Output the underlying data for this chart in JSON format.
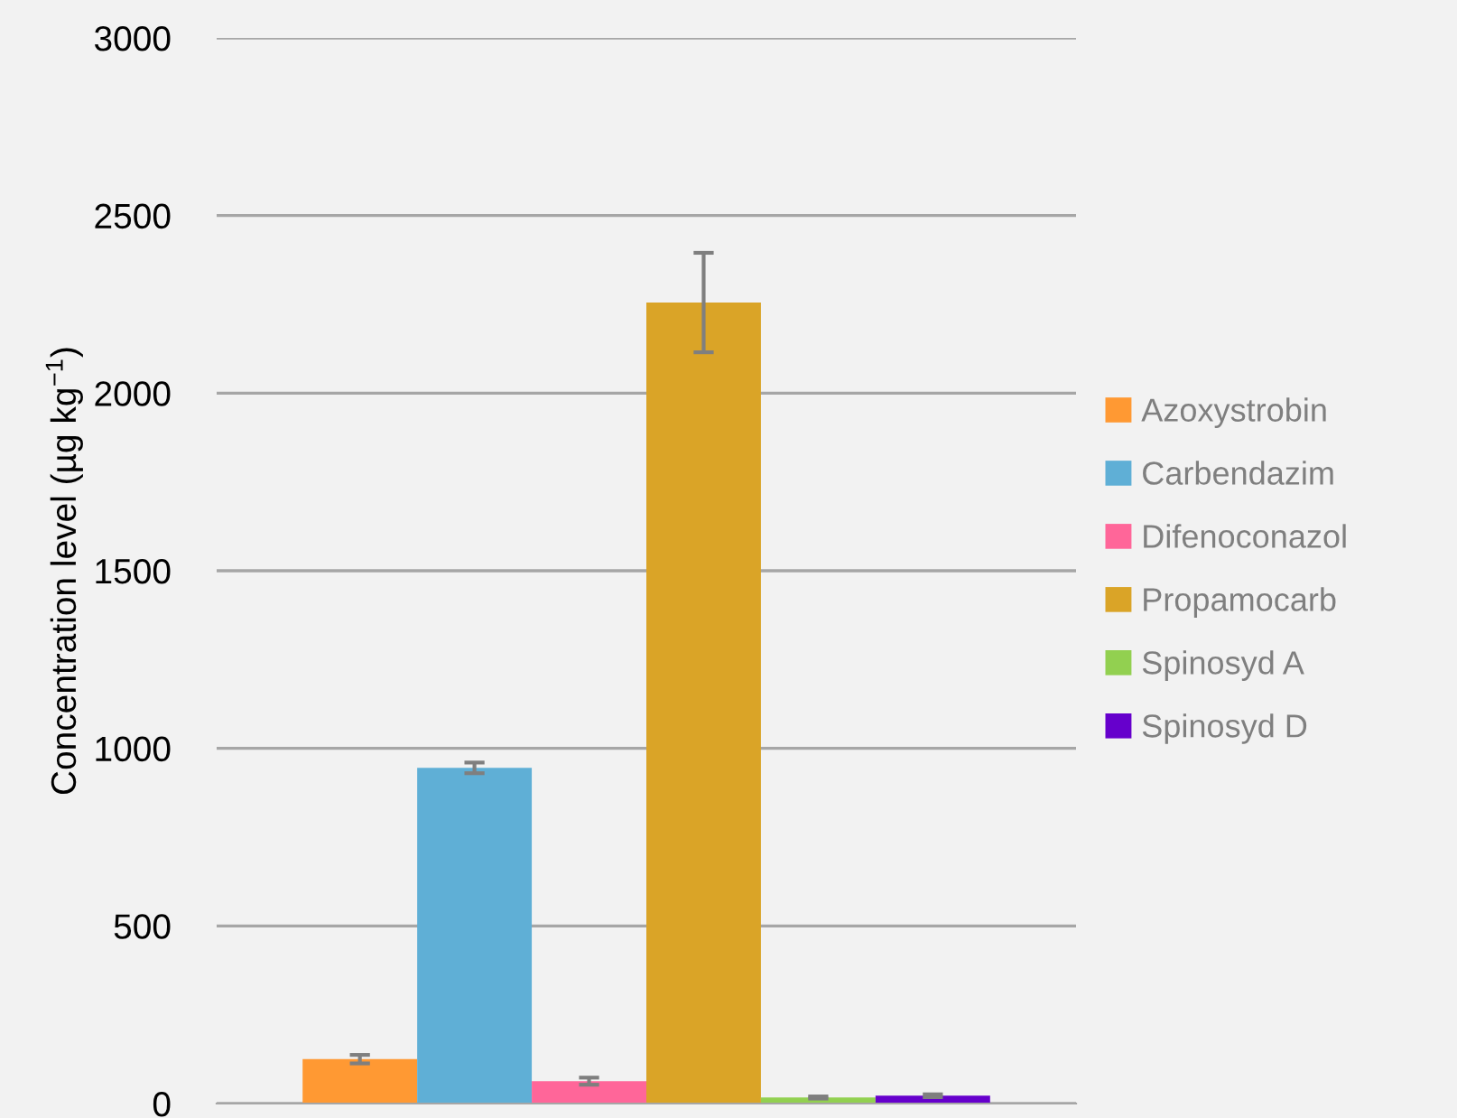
{
  "chart_data": {
    "type": "bar",
    "ylabel": "Concentration level (µg kg$^{−1}$)",
    "categories": [
      null
    ],
    "series": [
      {
        "name": "Azoxystrobin",
        "color": "#ff9933",
        "values": [
          125
        ],
        "errors": [
          12
        ]
      },
      {
        "name": "Carbendazim",
        "color": "#5fafd6",
        "values": [
          945
        ],
        "errors": [
          15
        ]
      },
      {
        "name": "Difenoconazol",
        "color": "#ff6699",
        "values": [
          63
        ],
        "errors": [
          10
        ]
      },
      {
        "name": "Propamocarb",
        "color": "#daa427",
        "values": [
          2255
        ],
        "errors": [
          140
        ]
      },
      {
        "name": "Spinosyd A",
        "color": "#92d050",
        "values": [
          17
        ],
        "errors": [
          3
        ]
      },
      {
        "name": "Spinosyd D",
        "color": "#6600cc",
        "values": [
          22
        ],
        "errors": [
          4
        ]
      }
    ],
    "ylim": [
      0,
      3000
    ],
    "yticks": [
      0,
      500,
      1000,
      1500,
      2000,
      2500,
      3000
    ],
    "grid": "y",
    "legend": "right"
  }
}
